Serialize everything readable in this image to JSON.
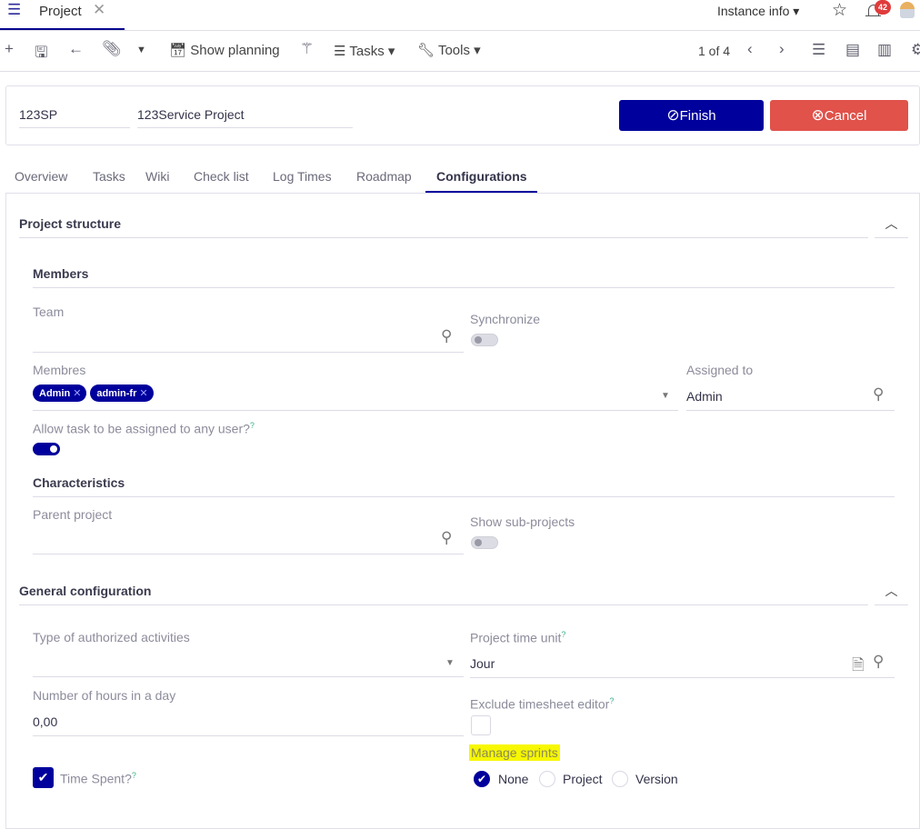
{
  "top": {
    "menu_icon": "list-icon",
    "tab_title": "Project",
    "close_icon": "close-icon",
    "instance_info": "Instance info",
    "star_icon": "star-icon",
    "bell_icon": "bell-icon",
    "notifications": "42",
    "avatar_icon": "user-avatar"
  },
  "toolbar": {
    "show_planning": "Show planning",
    "tasks": "Tasks",
    "tools": "Tools",
    "pager": "1 of 4"
  },
  "header": {
    "code": "123SP",
    "name": "123Service Project",
    "finish": "Finish",
    "cancel": "Cancel",
    "colors": {
      "finish": "#00009c",
      "cancel": "#e0524a"
    }
  },
  "tabs": [
    "Overview",
    "Tasks",
    "Wiki",
    "Check list",
    "Log Times",
    "Roadmap",
    "Configurations"
  ],
  "active_tab": "Configurations",
  "project_structure": {
    "title": "Project structure",
    "members": {
      "title": "Members",
      "team": "Team",
      "synchronize": "Synchronize",
      "synchronize_on": false,
      "membres": "Membres",
      "member_tags": [
        "Admin",
        "admin-fr"
      ],
      "assigned_to": "Assigned to",
      "assigned_value": "Admin",
      "allow_any": "Allow task to be assigned to any user?",
      "allow_any_on": true
    },
    "characteristics": {
      "title": "Characteristics",
      "parent_project": "Parent project",
      "show_subprojects": "Show sub-projects",
      "show_subprojects_on": false
    }
  },
  "general": {
    "title": "General configuration",
    "activities": "Type of authorized activities",
    "time_unit": "Project time unit",
    "time_unit_value": "Jour",
    "hours_day": "Number of hours in a day",
    "hours_day_value": "0,00",
    "exclude_ts": "Exclude timesheet editor",
    "exclude_ts_checked": false,
    "manage_sprints": "Manage sprints",
    "sprint_options": [
      "None",
      "Project",
      "Version"
    ],
    "sprint_selected": "None",
    "time_spent": "Time Spent?",
    "time_spent_checked": true,
    "help": "?"
  }
}
